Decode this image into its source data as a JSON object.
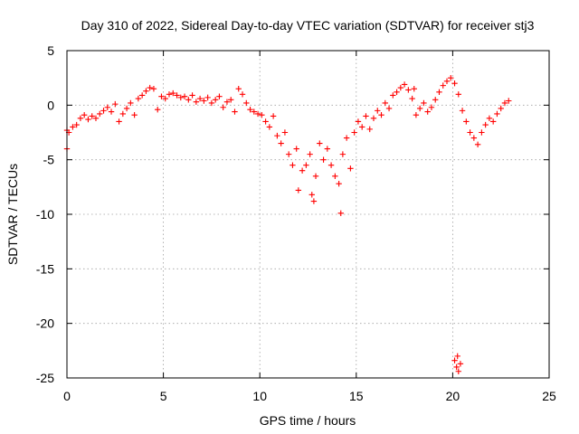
{
  "chart_data": {
    "type": "scatter",
    "title": "Day 310 of 2022, Sidereal Day-to-day VTEC variation (SDTVAR) for receiver stj3",
    "xlabel": "GPS time / hours",
    "ylabel": "SDTVAR / TECUs",
    "xlim": [
      0,
      25
    ],
    "ylim": [
      -25,
      5
    ],
    "xticks": [
      0,
      5,
      10,
      15,
      20,
      25
    ],
    "yticks": [
      5,
      0,
      -5,
      -10,
      -15,
      -20,
      -25
    ],
    "xtick_labels": [
      "0",
      "5",
      "10",
      "15",
      "20",
      "25"
    ],
    "ytick_labels": [
      "5",
      "0",
      "-5",
      "-10",
      "-15",
      "-20",
      "-25"
    ],
    "grid": true,
    "marker": "plus",
    "color": "#ff0000",
    "series": [
      {
        "name": "SDTVAR",
        "points": [
          [
            0.0,
            -2.3
          ],
          [
            0.0,
            -4.0
          ],
          [
            0.1,
            -2.5
          ],
          [
            0.3,
            -2.0
          ],
          [
            0.5,
            -1.8
          ],
          [
            0.7,
            -1.2
          ],
          [
            0.9,
            -0.9
          ],
          [
            1.1,
            -1.3
          ],
          [
            1.3,
            -1.0
          ],
          [
            1.5,
            -1.2
          ],
          [
            1.7,
            -0.8
          ],
          [
            1.9,
            -0.5
          ],
          [
            2.1,
            -0.2
          ],
          [
            2.3,
            -0.6
          ],
          [
            2.5,
            0.1
          ],
          [
            2.7,
            -1.5
          ],
          [
            2.9,
            -0.8
          ],
          [
            3.1,
            -0.3
          ],
          [
            3.3,
            0.2
          ],
          [
            3.5,
            -0.9
          ],
          [
            3.7,
            0.6
          ],
          [
            3.9,
            0.9
          ],
          [
            4.1,
            1.3
          ],
          [
            4.3,
            1.6
          ],
          [
            4.5,
            1.5
          ],
          [
            4.7,
            -0.4
          ],
          [
            4.9,
            0.8
          ],
          [
            5.1,
            0.6
          ],
          [
            5.3,
            1.0
          ],
          [
            5.5,
            1.1
          ],
          [
            5.7,
            0.9
          ],
          [
            5.9,
            0.7
          ],
          [
            6.1,
            0.8
          ],
          [
            6.3,
            0.5
          ],
          [
            6.5,
            0.9
          ],
          [
            6.7,
            0.3
          ],
          [
            6.9,
            0.6
          ],
          [
            7.1,
            0.4
          ],
          [
            7.3,
            0.7
          ],
          [
            7.5,
            0.2
          ],
          [
            7.7,
            0.5
          ],
          [
            7.9,
            0.8
          ],
          [
            8.1,
            -0.2
          ],
          [
            8.3,
            0.3
          ],
          [
            8.5,
            0.5
          ],
          [
            8.7,
            -0.6
          ],
          [
            8.9,
            1.5
          ],
          [
            9.1,
            1.0
          ],
          [
            9.3,
            0.2
          ],
          [
            9.5,
            -0.4
          ],
          [
            9.7,
            -0.6
          ],
          [
            9.9,
            -0.8
          ],
          [
            10.1,
            -0.9
          ],
          [
            10.3,
            -1.5
          ],
          [
            10.5,
            -2.0
          ],
          [
            10.7,
            -1.0
          ],
          [
            10.9,
            -2.8
          ],
          [
            11.1,
            -3.5
          ],
          [
            11.3,
            -2.5
          ],
          [
            11.5,
            -4.5
          ],
          [
            11.7,
            -5.5
          ],
          [
            11.9,
            -4.0
          ],
          [
            12.0,
            -7.8
          ],
          [
            12.2,
            -6.0
          ],
          [
            12.4,
            -5.5
          ],
          [
            12.6,
            -4.5
          ],
          [
            12.7,
            -8.2
          ],
          [
            12.8,
            -8.8
          ],
          [
            12.9,
            -6.5
          ],
          [
            13.1,
            -3.5
          ],
          [
            13.3,
            -5.0
          ],
          [
            13.5,
            -4.0
          ],
          [
            13.7,
            -5.5
          ],
          [
            13.9,
            -6.5
          ],
          [
            14.1,
            -7.2
          ],
          [
            14.2,
            -9.9
          ],
          [
            14.3,
            -4.5
          ],
          [
            14.5,
            -3.0
          ],
          [
            14.7,
            -5.8
          ],
          [
            14.9,
            -2.5
          ],
          [
            15.1,
            -1.5
          ],
          [
            15.3,
            -2.0
          ],
          [
            15.5,
            -1.0
          ],
          [
            15.7,
            -2.2
          ],
          [
            15.9,
            -1.2
          ],
          [
            16.1,
            -0.5
          ],
          [
            16.3,
            -0.9
          ],
          [
            16.5,
            0.2
          ],
          [
            16.7,
            -0.3
          ],
          [
            16.9,
            0.9
          ],
          [
            17.1,
            1.2
          ],
          [
            17.3,
            1.6
          ],
          [
            17.5,
            1.9
          ],
          [
            17.7,
            1.4
          ],
          [
            17.9,
            0.6
          ],
          [
            18.0,
            1.5
          ],
          [
            18.1,
            -0.9
          ],
          [
            18.3,
            -0.3
          ],
          [
            18.5,
            0.2
          ],
          [
            18.7,
            -0.6
          ],
          [
            18.9,
            -0.2
          ],
          [
            19.1,
            0.5
          ],
          [
            19.3,
            1.2
          ],
          [
            19.5,
            1.8
          ],
          [
            19.7,
            2.2
          ],
          [
            19.9,
            2.5
          ],
          [
            20.1,
            2.0
          ],
          [
            20.3,
            1.0
          ],
          [
            20.5,
            -0.5
          ],
          [
            20.7,
            -1.5
          ],
          [
            20.9,
            -2.5
          ],
          [
            21.1,
            -3.0
          ],
          [
            21.3,
            -3.6
          ],
          [
            21.5,
            -2.5
          ],
          [
            21.7,
            -1.8
          ],
          [
            21.9,
            -1.2
          ],
          [
            22.1,
            -1.5
          ],
          [
            22.3,
            -0.8
          ],
          [
            22.5,
            -0.3
          ],
          [
            22.7,
            0.2
          ],
          [
            22.9,
            0.4
          ],
          [
            20.1,
            -23.4
          ],
          [
            20.2,
            -24.0
          ],
          [
            20.3,
            -24.4
          ],
          [
            20.4,
            -23.7
          ],
          [
            20.25,
            -23.0
          ]
        ]
      }
    ]
  }
}
